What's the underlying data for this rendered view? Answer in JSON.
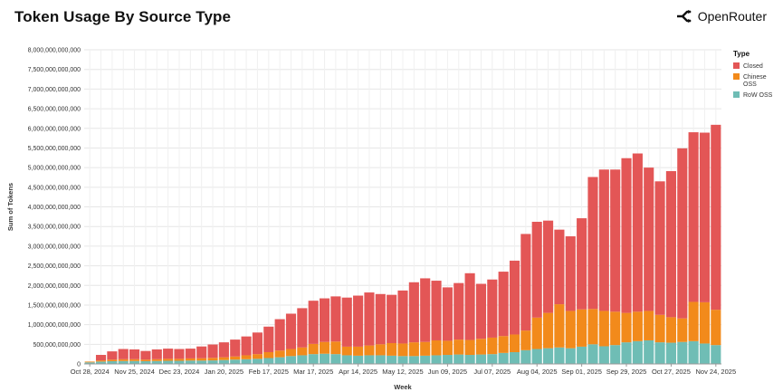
{
  "header": {
    "title": "Token Usage By Source Type",
    "brand": "OpenRouter"
  },
  "colors": {
    "closed": "#e35656",
    "chinese_oss": "#f28a1b",
    "row_oss": "#6fbdb5"
  },
  "icons": {
    "brand": "openrouter-logo-icon"
  },
  "chart_data": {
    "type": "bar",
    "stacked": true,
    "xlabel": "Week",
    "ylabel": "Sum of Tokens",
    "ylim": [
      0,
      8000000000000
    ],
    "y_ticks": [
      "0",
      "500,000,000,000",
      "1,000,000,000,000",
      "1,500,000,000,000",
      "2,000,000,000,000",
      "2,500,000,000,000",
      "3,000,000,000,000",
      "3,500,000,000,000",
      "4,000,000,000,000",
      "4,500,000,000,000",
      "5,000,000,000,000",
      "5,500,000,000,000",
      "6,000,000,000,000",
      "6,500,000,000,000",
      "7,000,000,000,000",
      "7,500,000,000,000",
      "8,000,000,000,000"
    ],
    "x_tick_labels": [
      "Oct 28, 2024",
      "Nov 25, 2024",
      "Dec 23, 2024",
      "Jan 20, 2025",
      "Feb 17, 2025",
      "Mar 17, 2025",
      "Apr 14, 2025",
      "May 12, 2025",
      "Jun 09, 2025",
      "Jul 07, 2025",
      "Aug 04, 2025",
      "Sep 01, 2025",
      "Sep 29, 2025",
      "Oct 27, 2025",
      "Nov 24, 2025"
    ],
    "grid": true,
    "legend": {
      "title": "Type",
      "position": "right",
      "items": [
        {
          "label": "Closed"
        },
        {
          "label": "Chinese\nOSS"
        },
        {
          "label": "RoW OSS"
        }
      ]
    },
    "weeks": [
      "Oct 28, 2024",
      "Nov 04, 2024",
      "Nov 11, 2024",
      "Nov 18, 2024",
      "Nov 25, 2024",
      "Dec 02, 2024",
      "Dec 09, 2024",
      "Dec 16, 2024",
      "Dec 23, 2024",
      "Dec 30, 2024",
      "Jan 06, 2025",
      "Jan 13, 2025",
      "Jan 20, 2025",
      "Jan 27, 2025",
      "Feb 03, 2025",
      "Feb 10, 2025",
      "Feb 17, 2025",
      "Feb 24, 2025",
      "Mar 03, 2025",
      "Mar 10, 2025",
      "Mar 17, 2025",
      "Mar 24, 2025",
      "Mar 31, 2025",
      "Apr 07, 2025",
      "Apr 14, 2025",
      "Apr 21, 2025",
      "Apr 28, 2025",
      "May 05, 2025",
      "May 12, 2025",
      "May 19, 2025",
      "May 26, 2025",
      "Jun 02, 2025",
      "Jun 09, 2025",
      "Jun 16, 2025",
      "Jun 23, 2025",
      "Jun 30, 2025",
      "Jul 07, 2025",
      "Jul 14, 2025",
      "Jul 21, 2025",
      "Jul 28, 2025",
      "Aug 04, 2025",
      "Aug 11, 2025",
      "Aug 18, 2025",
      "Aug 25, 2025",
      "Sep 01, 2025",
      "Sep 08, 2025",
      "Sep 15, 2025",
      "Sep 22, 2025",
      "Sep 29, 2025",
      "Oct 06, 2025",
      "Oct 13, 2025",
      "Oct 20, 2025",
      "Oct 27, 2025",
      "Nov 03, 2025",
      "Nov 10, 2025",
      "Nov 17, 2025",
      "Nov 24, 2025"
    ],
    "series": [
      {
        "name": "RoW OSS",
        "values": [
          40,
          60,
          70,
          75,
          75,
          70,
          75,
          80,
          80,
          85,
          85,
          90,
          100,
          110,
          120,
          130,
          150,
          170,
          200,
          220,
          250,
          260,
          250,
          220,
          210,
          220,
          220,
          210,
          200,
          200,
          210,
          220,
          230,
          240,
          230,
          240,
          250,
          280,
          300,
          350,
          380,
          400,
          420,
          400,
          440,
          500,
          450,
          480,
          550,
          580,
          600,
          550,
          540,
          560,
          580,
          520,
          480
        ]
      },
      {
        "name": "Chinese OSS",
        "values": [
          20,
          30,
          40,
          45,
          45,
          40,
          45,
          50,
          50,
          55,
          60,
          65,
          70,
          80,
          100,
          120,
          150,
          170,
          180,
          200,
          260,
          300,
          320,
          220,
          230,
          250,
          280,
          320,
          320,
          350,
          350,
          380,
          360,
          380,
          380,
          400,
          420,
          430,
          450,
          500,
          800,
          900,
          1100,
          950,
          950,
          900,
          900,
          850,
          750,
          750,
          750,
          700,
          650,
          600,
          1000,
          1050,
          900
        ]
      },
      {
        "name": "Closed",
        "values": [
          0,
          140,
          210,
          260,
          250,
          220,
          250,
          260,
          250,
          250,
          300,
          340,
          380,
          430,
          480,
          550,
          650,
          800,
          900,
          1000,
          1100,
          1110,
          1150,
          1250,
          1300,
          1350,
          1280,
          1230,
          1350,
          1530,
          1620,
          1520,
          1360,
          1440,
          1700,
          1400,
          1480,
          1640,
          1880,
          2460,
          2440,
          2350,
          1900,
          1900,
          2320,
          3360,
          3600,
          3620,
          3940,
          4030,
          3650,
          3400,
          3720,
          4330,
          4320,
          4320,
          4710
        ]
      }
    ],
    "units": "billions of tokens"
  }
}
